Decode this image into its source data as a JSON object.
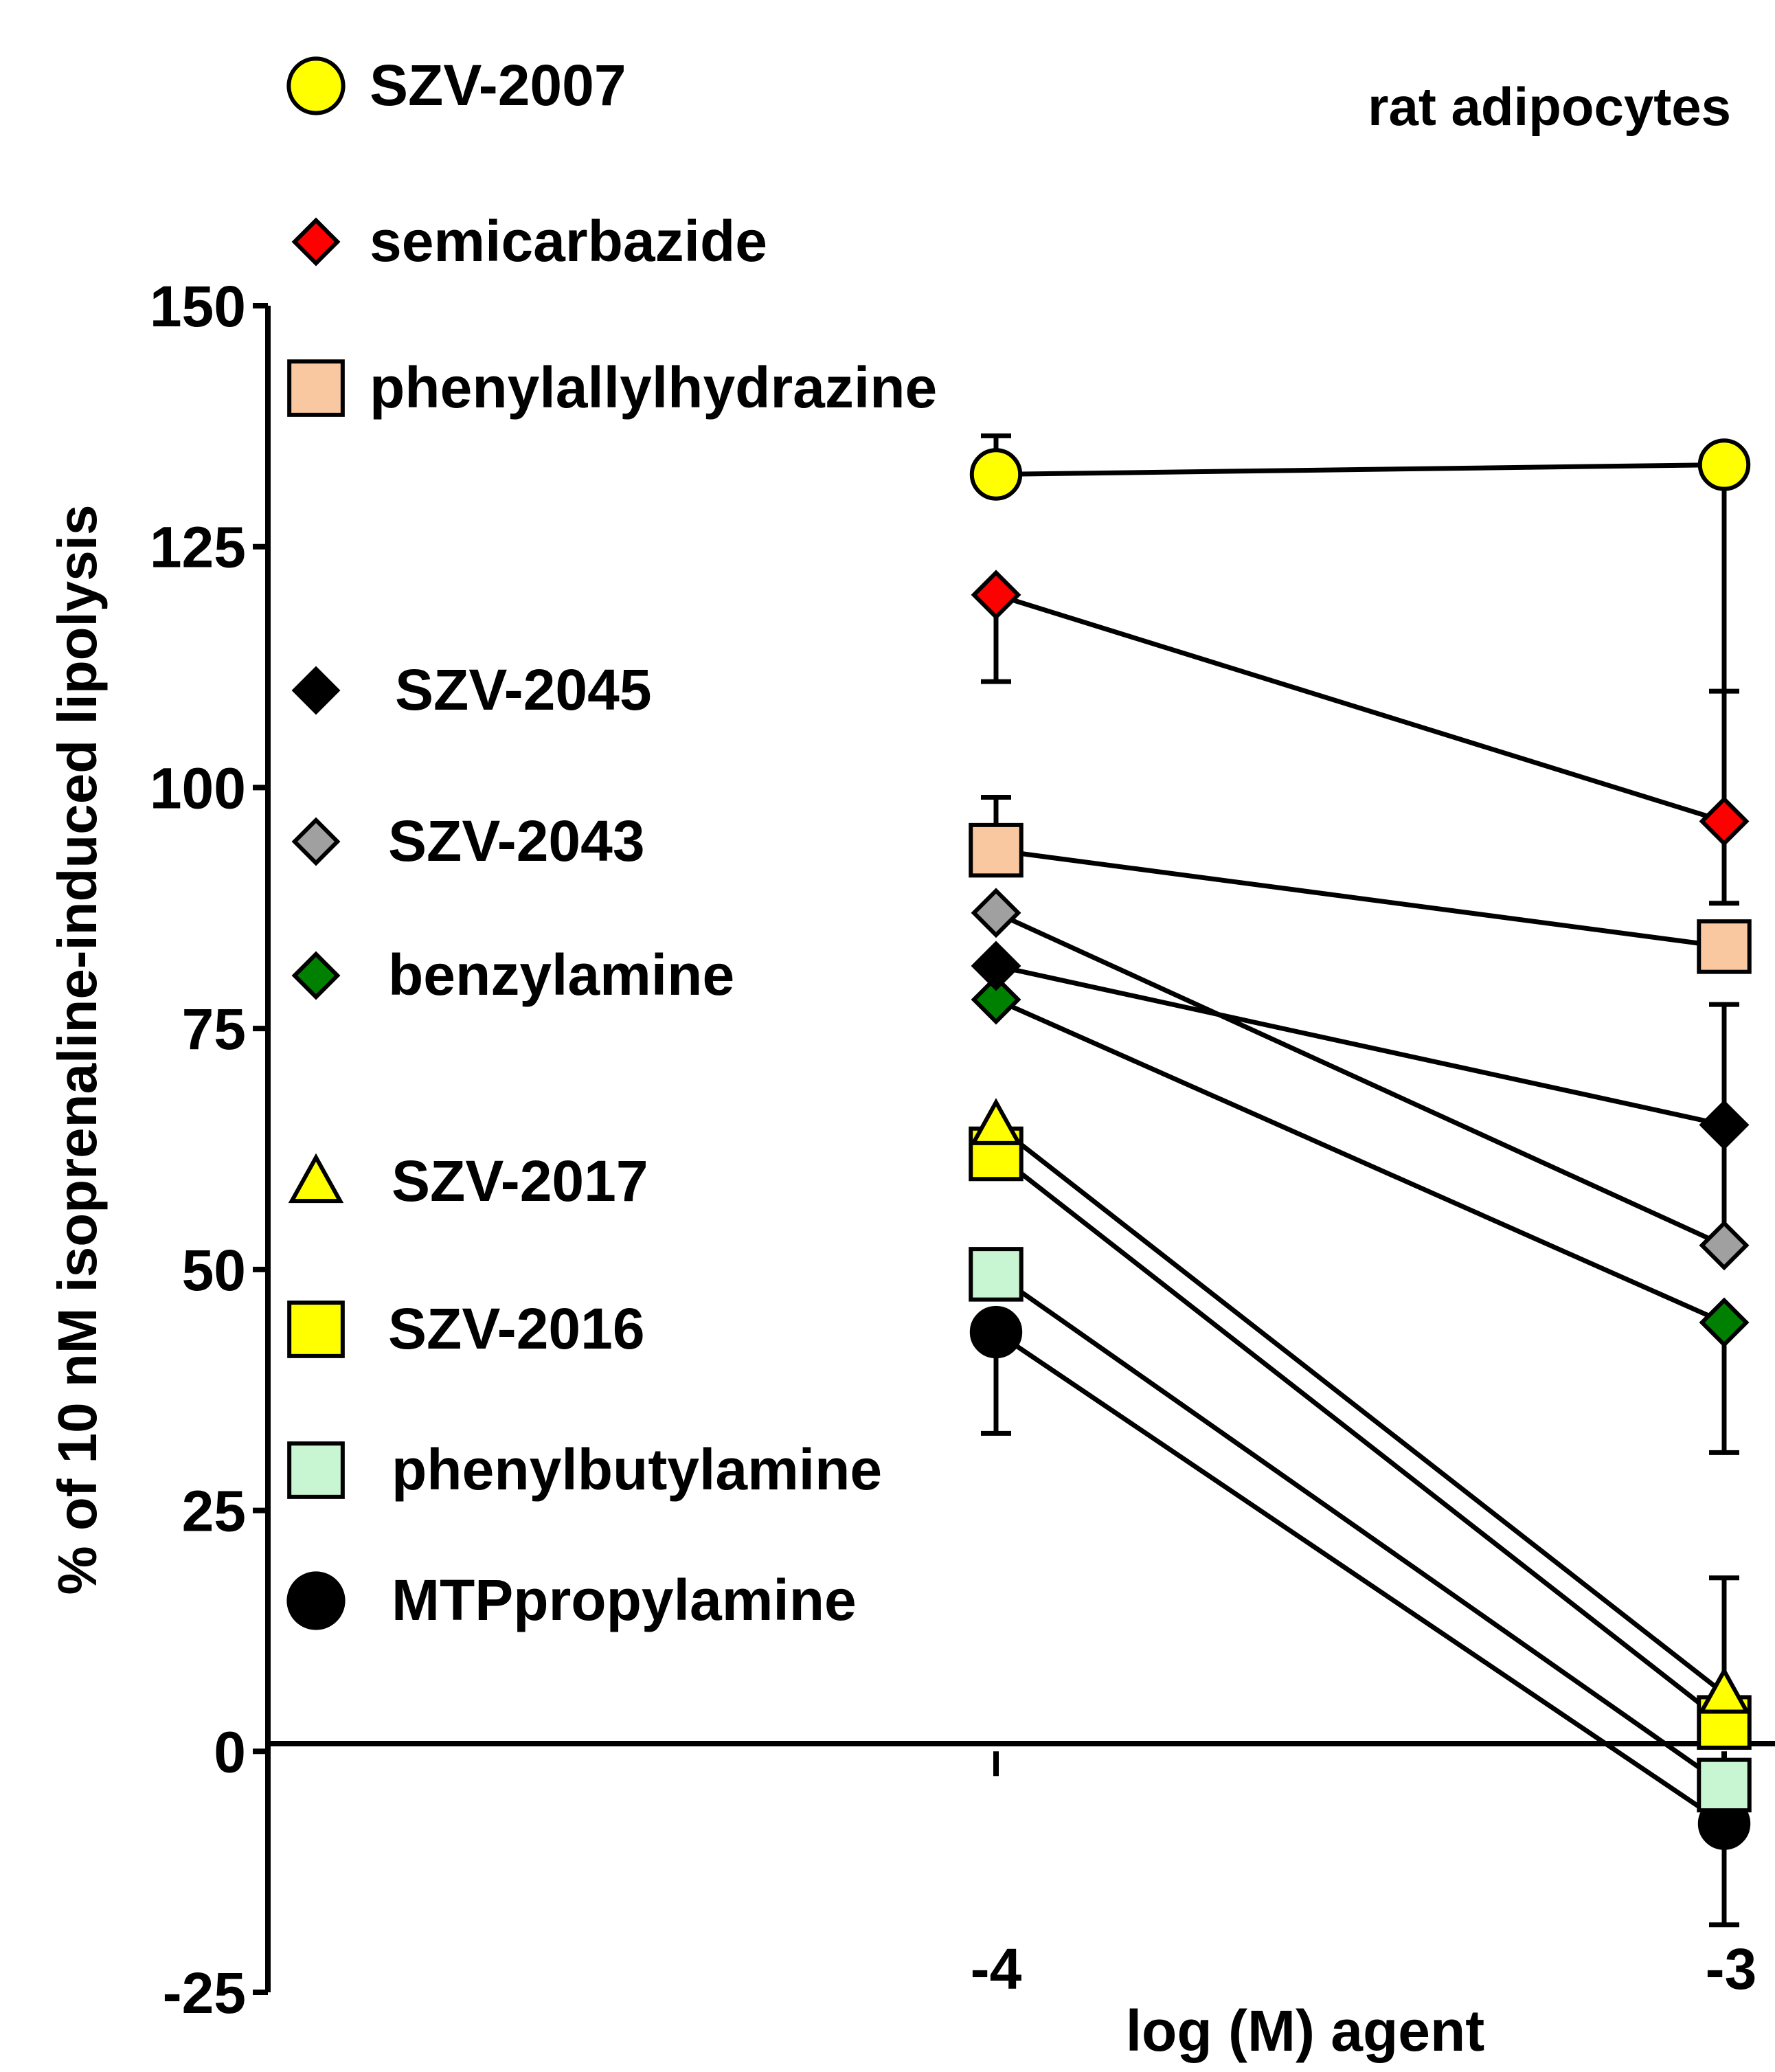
{
  "chart_data": {
    "type": "line",
    "annotation": "rat adipocytes",
    "xlabel": "log (M) agent",
    "ylabel": "% of 10 nM isoprenaline-induced lipolysis",
    "x": [
      -4,
      -3
    ],
    "x_tick_labels": [
      "-4",
      "-3"
    ],
    "xlim": [
      -5,
      -3
    ],
    "ylim": [
      -25,
      150
    ],
    "y_ticks": [
      -25,
      0,
      25,
      50,
      75,
      100,
      125,
      150
    ],
    "y_tick_labels": [
      "-25",
      "0",
      "25",
      "50",
      "75",
      "100",
      "125",
      "150"
    ],
    "zero_line": true,
    "series": [
      {
        "name": "SZV-2007",
        "marker": "circle",
        "color": "#ffff00",
        "values": [
          132.5,
          133.5
        ],
        "error_up": [
          136.5,
          133.5
        ],
        "error_down": [
          132.5,
          88
        ]
      },
      {
        "name": "semicarbazide",
        "marker": "diamond",
        "color": "#ff0000",
        "values": [
          120,
          96.5
        ],
        "error_up": [
          120,
          110
        ],
        "error_down": [
          111,
          96.5
        ]
      },
      {
        "name": "phenylallylhydrazine",
        "marker": "square",
        "color": "#fac8a0",
        "values": [
          93.5,
          83.5
        ],
        "error_up": [
          99,
          83.5
        ],
        "error_down": [
          93.5,
          83.5
        ]
      },
      {
        "name": "SZV-2045",
        "marker": "diamond",
        "color": "#000000",
        "values": [
          81.5,
          65
        ],
        "error_up": [
          81.5,
          77.5
        ],
        "error_down": [
          81.5,
          52.5
        ]
      },
      {
        "name": "SZV-2043",
        "marker": "diamond",
        "color": "#a0a0a0",
        "values": [
          87,
          52.5
        ],
        "error_up": [
          87,
          52.5
        ],
        "error_down": [
          87,
          52.5
        ]
      },
      {
        "name": "benzylamine",
        "marker": "diamond",
        "color": "#008000",
        "values": [
          78,
          44.5
        ],
        "error_up": [
          78,
          44.5
        ],
        "error_down": [
          78,
          31
        ]
      },
      {
        "name": "SZV-2017",
        "marker": "triangle",
        "color": "#ffff00",
        "values": [
          65,
          6
        ],
        "error_up": [
          65,
          18
        ],
        "error_down": [
          65,
          6
        ]
      },
      {
        "name": "SZV-2016",
        "marker": "square",
        "color": "#ffff00",
        "values": [
          62,
          3
        ],
        "error_up": [
          62,
          3
        ],
        "error_down": [
          62,
          3
        ]
      },
      {
        "name": "phenylbutylamine",
        "marker": "square",
        "color": "#c8f5d2",
        "values": [
          49.5,
          -3.5
        ],
        "error_up": [
          49.5,
          -3.5
        ],
        "error_down": [
          49.5,
          -3.5
        ]
      },
      {
        "name": "MTPpropylamine",
        "marker": "circle",
        "color": "#000000",
        "values": [
          43.5,
          -7.5
        ],
        "error_up": [
          43.5,
          -7.5
        ],
        "error_down": [
          33,
          -18
        ]
      }
    ],
    "legend_placement": "top-left"
  }
}
